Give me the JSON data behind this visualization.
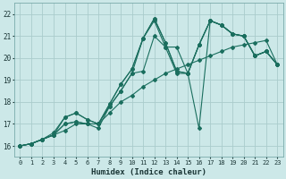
{
  "xlabel": "Humidex (Indice chaleur)",
  "bg_color": "#cce8e8",
  "grid_color": "#aacccc",
  "line_color": "#1a6e5e",
  "marker": "D",
  "markersize": 2.0,
  "linewidth": 0.8,
  "xlim": [
    -0.5,
    23.5
  ],
  "ylim": [
    15.5,
    22.5
  ],
  "xticks": [
    0,
    1,
    2,
    3,
    4,
    5,
    6,
    7,
    8,
    9,
    10,
    11,
    12,
    13,
    14,
    15,
    16,
    17,
    18,
    19,
    20,
    21,
    22,
    23
  ],
  "yticks": [
    16,
    17,
    18,
    19,
    20,
    21,
    22
  ],
  "lines": [
    {
      "x": [
        0,
        1,
        2,
        3,
        4,
        5,
        6,
        7,
        8,
        9,
        10,
        11,
        12,
        13,
        14,
        15,
        16,
        17,
        18,
        19,
        20,
        21,
        22,
        23
      ],
      "y": [
        16.0,
        16.1,
        16.3,
        16.5,
        16.7,
        17.0,
        17.0,
        17.0,
        17.5,
        18.0,
        18.3,
        18.7,
        19.0,
        19.3,
        19.5,
        19.7,
        19.9,
        20.1,
        20.3,
        20.5,
        20.6,
        20.7,
        20.8,
        19.7
      ]
    },
    {
      "x": [
        0,
        1,
        2,
        3,
        4,
        5,
        6,
        7,
        8,
        9,
        10,
        11,
        12,
        13,
        14,
        15,
        16,
        17,
        18,
        19,
        20,
        21,
        22,
        23
      ],
      "y": [
        16.0,
        16.1,
        16.3,
        16.5,
        17.0,
        17.1,
        17.0,
        17.0,
        17.8,
        18.5,
        19.3,
        19.4,
        21.0,
        20.5,
        20.5,
        19.3,
        20.6,
        21.7,
        21.5,
        21.1,
        21.0,
        20.1,
        20.3,
        19.7
      ]
    },
    {
      "x": [
        0,
        1,
        2,
        3,
        4,
        5,
        6,
        7,
        8,
        9,
        10,
        11,
        12,
        13,
        14,
        15,
        16,
        17,
        18,
        19,
        20,
        21,
        22,
        23
      ],
      "y": [
        16.0,
        16.1,
        16.3,
        16.5,
        17.0,
        17.1,
        17.0,
        16.8,
        17.8,
        18.5,
        19.3,
        20.9,
        21.7,
        20.5,
        19.3,
        19.3,
        20.6,
        21.7,
        21.5,
        21.1,
        21.0,
        20.1,
        20.3,
        19.7
      ]
    },
    {
      "x": [
        0,
        1,
        2,
        3,
        4,
        5,
        6,
        7,
        8,
        9,
        10,
        11,
        12,
        13,
        14,
        15,
        16,
        17,
        18,
        19,
        20,
        21,
        22,
        23
      ],
      "y": [
        16.0,
        16.1,
        16.3,
        16.5,
        17.3,
        17.5,
        17.2,
        17.0,
        17.9,
        18.8,
        19.5,
        20.9,
        21.8,
        20.7,
        19.4,
        19.3,
        16.8,
        21.7,
        21.5,
        21.1,
        21.0,
        20.1,
        20.3,
        19.7
      ]
    },
    {
      "x": [
        0,
        1,
        2,
        3,
        4,
        5,
        6,
        7,
        8,
        9,
        10,
        11,
        12,
        13,
        14,
        15,
        16,
        17,
        18,
        19,
        20,
        21,
        22,
        23
      ],
      "y": [
        16.0,
        16.1,
        16.3,
        16.6,
        17.3,
        17.5,
        17.2,
        17.0,
        17.9,
        18.8,
        19.5,
        20.9,
        21.8,
        20.7,
        19.4,
        19.3,
        20.6,
        21.7,
        21.5,
        21.1,
        21.0,
        20.1,
        20.3,
        19.7
      ]
    }
  ]
}
